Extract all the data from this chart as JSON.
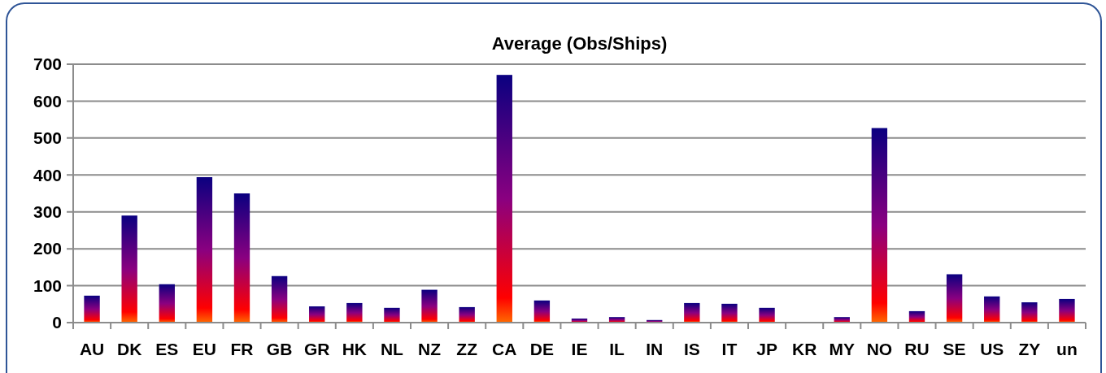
{
  "chart_data": {
    "type": "bar",
    "title": "Average (Obs/Ships)",
    "categories": [
      "AU",
      "DK",
      "ES",
      "EU",
      "FR",
      "GB",
      "GR",
      "HK",
      "NL",
      "NZ",
      "ZZ",
      "CA",
      "DE",
      "IE",
      "IL",
      "IN",
      "IS",
      "IT",
      "JP",
      "KR",
      "MY",
      "NO",
      "RU",
      "SE",
      "US",
      "ZY",
      "un"
    ],
    "values": [
      73,
      290,
      104,
      394,
      350,
      126,
      44,
      53,
      40,
      89,
      42,
      671,
      60,
      11,
      15,
      7,
      53,
      51,
      40,
      0,
      15,
      527,
      31,
      131,
      71,
      55,
      64
    ],
    "color": "#8a0080",
    "ylim": [
      0,
      700
    ],
    "yticks": [
      0,
      100,
      200,
      300,
      400,
      500,
      600,
      700
    ],
    "grid": "y"
  }
}
